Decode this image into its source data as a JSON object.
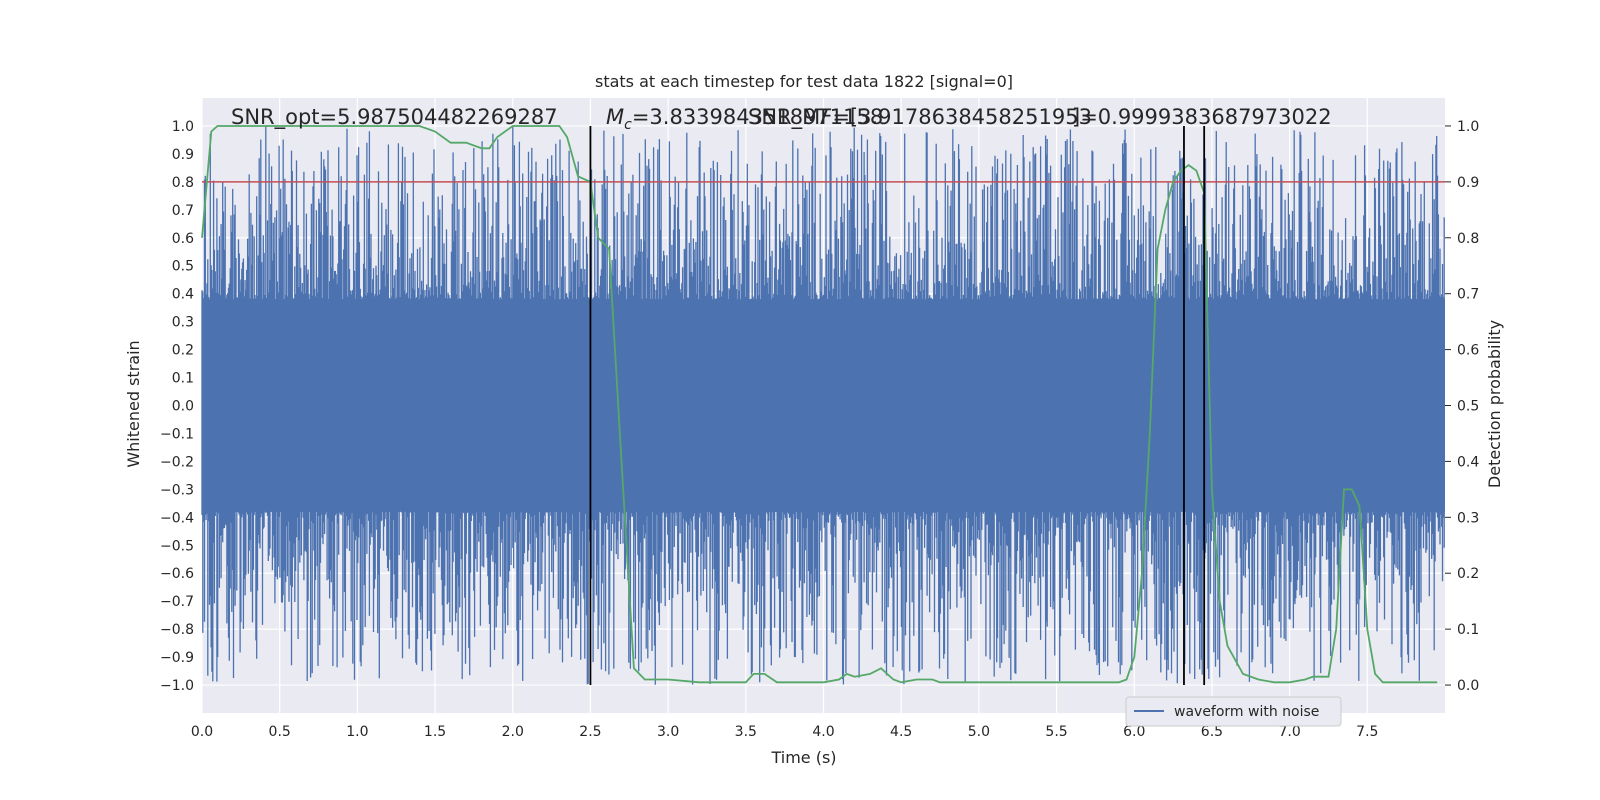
{
  "chart_data": {
    "type": "line",
    "title": "stats at each timestep for test data 1822 [signal=0]",
    "xlabel": "Time (s)",
    "ylabel": "Whitened strain",
    "y2label": "Detection probability",
    "xlim": [
      0.0,
      8.0
    ],
    "ylim": [
      -1.1,
      1.1
    ],
    "y2lim": [
      -0.05,
      1.05
    ],
    "xticks": [
      "0.0",
      "0.5",
      "1.0",
      "1.5",
      "2.0",
      "2.5",
      "3.0",
      "3.5",
      "4.0",
      "4.5",
      "5.0",
      "5.5",
      "6.0",
      "6.5",
      "7.0",
      "7.5"
    ],
    "yticks": [
      "1.0",
      "0.9",
      "0.8",
      "0.7",
      "0.6",
      "0.5",
      "0.4",
      "0.3",
      "0.2",
      "0.1",
      "0.0",
      "−0.1",
      "−0.2",
      "−0.3",
      "−0.4",
      "−0.5",
      "−0.6",
      "−0.7",
      "−0.8",
      "−0.9",
      "−1.0"
    ],
    "y2ticks": [
      "1.0",
      "0.9",
      "0.8",
      "0.7",
      "0.6",
      "0.5",
      "0.4",
      "0.3",
      "0.2",
      "0.1",
      "0.0"
    ],
    "grid": true,
    "legend_position": "lower-right",
    "annotations": {
      "snr_opt": "SNR_opt=5.987504482269287",
      "mc_symbol": "M",
      "mc_sub": "c",
      "mc_value": "=3.8339843518971158",
      "snr_mf": "SNR_MF=[3.9178638458251953",
      "s_value": "]=0.9999383687973022"
    },
    "series": [
      {
        "name": "waveform with noise",
        "kind": "noisy-strain",
        "color": "#4c72b0",
        "core_amplitude": 0.38,
        "max_amplitude": 1.0,
        "noise_seed": 1822
      },
      {
        "kind": "detection-probability",
        "color": "#55a868",
        "x": [
          0.0,
          0.06,
          0.1,
          0.2,
          0.4,
          0.6,
          0.8,
          1.0,
          1.2,
          1.4,
          1.5,
          1.6,
          1.7,
          1.8,
          1.85,
          1.9,
          2.0,
          2.1,
          2.2,
          2.25,
          2.3,
          2.35,
          2.42,
          2.5,
          2.55,
          2.62,
          2.7,
          2.78,
          2.85,
          3.0,
          3.2,
          3.4,
          3.5,
          3.55,
          3.62,
          3.7,
          3.8,
          4.0,
          4.1,
          4.15,
          4.2,
          4.3,
          4.37,
          4.45,
          4.5,
          4.6,
          4.7,
          4.75,
          4.8,
          5.0,
          5.5,
          5.9,
          5.95,
          6.0,
          6.05,
          6.1,
          6.15,
          6.2,
          6.25,
          6.3,
          6.35,
          6.4,
          6.45,
          6.5,
          6.55,
          6.6,
          6.7,
          6.8,
          6.9,
          7.0,
          7.1,
          7.15,
          7.2,
          7.25,
          7.3,
          7.35,
          7.4,
          7.45,
          7.5,
          7.55,
          7.6,
          7.7,
          7.8,
          7.95
        ],
        "y": [
          0.8,
          0.99,
          1.0,
          1.0,
          1.0,
          1.0,
          1.0,
          1.0,
          1.0,
          1.0,
          0.99,
          0.97,
          0.97,
          0.96,
          0.96,
          0.98,
          1.0,
          1.0,
          1.0,
          1.0,
          1.0,
          0.98,
          0.91,
          0.9,
          0.8,
          0.78,
          0.4,
          0.03,
          0.01,
          0.01,
          0.005,
          0.005,
          0.005,
          0.02,
          0.02,
          0.005,
          0.005,
          0.005,
          0.01,
          0.02,
          0.015,
          0.02,
          0.03,
          0.01,
          0.005,
          0.01,
          0.01,
          0.005,
          0.005,
          0.005,
          0.005,
          0.005,
          0.01,
          0.05,
          0.2,
          0.45,
          0.78,
          0.85,
          0.9,
          0.92,
          0.93,
          0.92,
          0.88,
          0.35,
          0.15,
          0.07,
          0.02,
          0.01,
          0.005,
          0.005,
          0.01,
          0.015,
          0.015,
          0.015,
          0.1,
          0.35,
          0.35,
          0.32,
          0.1,
          0.02,
          0.005,
          0.005,
          0.005,
          0.005
        ]
      }
    ],
    "threshold_line": {
      "y2": 0.9,
      "color": "#c44e52"
    },
    "vertical_markers": [
      {
        "x": 2.5,
        "y_from": -1.0,
        "y_to": 1.0
      },
      {
        "x": 6.32,
        "y_from": -1.0,
        "y_to": 1.0
      },
      {
        "x": 6.45,
        "y_from": -1.0,
        "y_to": 1.0
      }
    ],
    "colors": {
      "plot_bg": "#eaeaf2",
      "grid": "#ffffff",
      "marker": "#000000"
    }
  }
}
